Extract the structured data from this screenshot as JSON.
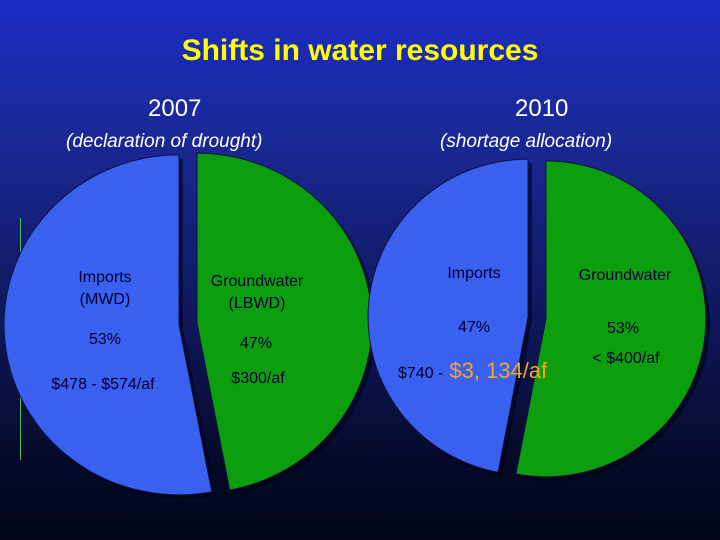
{
  "slide": {
    "title": "Shifts in water resources"
  },
  "colors": {
    "title": "#ffff00",
    "imports_fill": "#3a60f0",
    "groundwater_fill": "#0c9e0c",
    "label_text": "#000033",
    "highlight_text": "#f5a623"
  },
  "chart_data": [
    {
      "type": "pie",
      "year": "2007",
      "subtitle": "(declaration of drought)",
      "slices": [
        {
          "name": "Imports",
          "name_line2": "(MWD)",
          "value": 53,
          "value_label": "53%",
          "price": "$478 - $574/af",
          "color": "#3a60f0"
        },
        {
          "name": "Groundwater",
          "name_line2": "(LBWD)",
          "value": 47,
          "value_label": "47%",
          "price": "$300/af",
          "color": "#0c9e0c"
        }
      ]
    },
    {
      "type": "pie",
      "year": "2010",
      "subtitle": "(shortage allocation)",
      "slices": [
        {
          "name": "Imports",
          "value": 47,
          "value_label": "47%",
          "price_prefix": "$740 -",
          "price_highlight": "$3, 134",
          "price_suffix": "/af",
          "color": "#3a60f0"
        },
        {
          "name": "Groundwater",
          "value": 53,
          "value_label": "53%",
          "price": "< $400/af",
          "color": "#0c9e0c"
        }
      ]
    }
  ]
}
